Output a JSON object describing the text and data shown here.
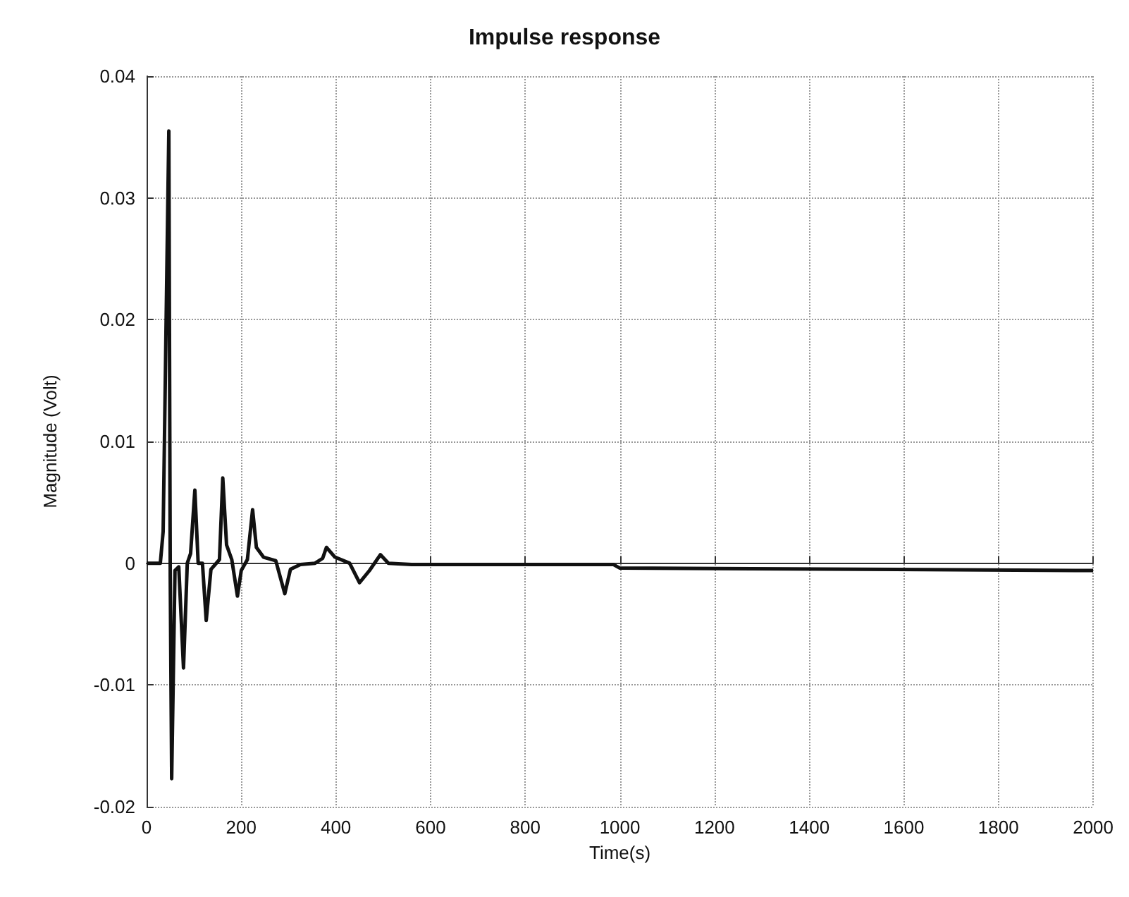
{
  "chart_data": {
    "type": "line",
    "title": "Impulse response",
    "xlabel": "Time(s)",
    "ylabel": "Magnitude (Volt)",
    "xlim": [
      0,
      2000
    ],
    "ylim": [
      -0.02,
      0.04
    ],
    "xticks": [
      0,
      200,
      400,
      600,
      800,
      1000,
      1200,
      1400,
      1600,
      1800,
      2000
    ],
    "yticks": [
      -0.02,
      -0.01,
      0,
      0.01,
      0.02,
      0.03,
      0.04
    ],
    "grid": true,
    "marker": "none",
    "line_style": "solid",
    "series": [
      {
        "color": "#111111",
        "x": [
          0,
          29,
          35,
          47,
          50,
          53,
          60,
          68,
          78,
          86,
          93,
          102,
          109,
          118,
          126,
          136,
          154,
          161,
          169,
          180,
          192,
          200,
          213,
          224,
          232,
          247,
          273,
          292,
          304,
          325,
          356,
          372,
          380,
          398,
          429,
          450,
          471,
          494,
          511,
          560,
          986,
          1000,
          2000
        ],
        "values": [
          0,
          0,
          0.0026,
          0.0355,
          -0.0011,
          -0.0177,
          -0.0006,
          -0.0003,
          -0.0086,
          0,
          0.0008,
          0.006,
          0,
          0,
          -0.0047,
          -0.0005,
          0.0003,
          0.007,
          0.0015,
          0.0003,
          -0.0027,
          -0.0006,
          0.0003,
          0.0044,
          0.0013,
          0.0005,
          0.0002,
          -0.0025,
          -0.0005,
          -0.0001,
          0,
          0.0004,
          0.0013,
          0.0005,
          0,
          -0.0016,
          -0.0006,
          0.0007,
          0,
          -0.0001,
          -0.0001,
          -0.0004,
          -0.0006
        ]
      }
    ]
  }
}
